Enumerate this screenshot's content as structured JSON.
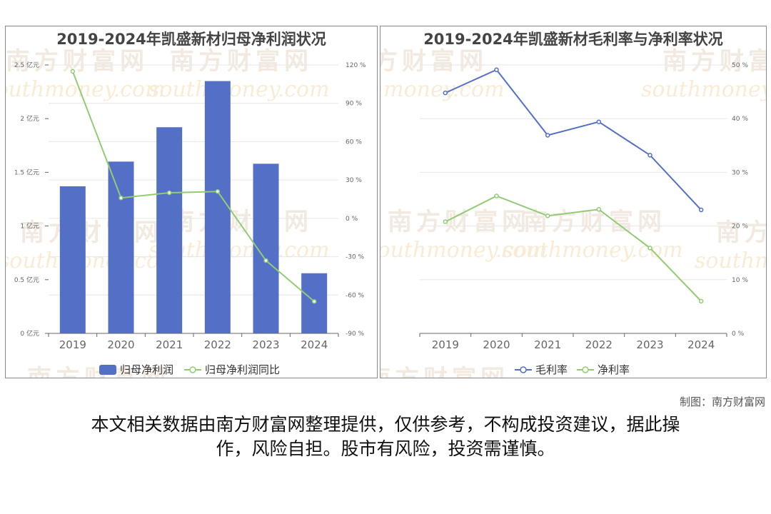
{
  "left_title": "2019-2024年凯盛新材归母净利润状况",
  "right_title": "2019-2024年凯盛新材毛利率与净利率状况",
  "credit": "制图：南方财富网",
  "disclaimer_line1": "本文相关数据由南方财富网整理提供，仅供参考，不构成投资建议，据此操",
  "disclaimer_line2": "作，风险自担。股市有风险，投资需谨慎。",
  "watermark": {
    "cn": "南方财富网",
    "en": "southmoney.com"
  },
  "colors": {
    "bar": "#5470c6",
    "green": "#91cc75",
    "blue": "#5470c6"
  },
  "chart_data": [
    {
      "type": "bar",
      "title": "2019-2024年凯盛新材归母净利润状况",
      "categories": [
        "2019",
        "2020",
        "2021",
        "2022",
        "2023",
        "2024"
      ],
      "series": [
        {
          "name": "归母净利润",
          "type": "bar",
          "axis": "left",
          "values": [
            1.37,
            1.6,
            1.92,
            2.35,
            1.58,
            0.56
          ]
        },
        {
          "name": "归母净利润同比",
          "type": "line",
          "axis": "right",
          "values": [
            115,
            16,
            20,
            21,
            -33,
            -65
          ]
        }
      ],
      "y_left": {
        "min": 0,
        "max": 2.5,
        "ticks": [
          0,
          0.5,
          1,
          1.5,
          2,
          2.5
        ],
        "labels": [
          "0 亿元",
          "0.5 亿元",
          "1 亿元",
          "1.5 亿元",
          "2 亿元",
          "2.5 亿元"
        ]
      },
      "y_right": {
        "min": -90,
        "max": 120,
        "ticks": [
          -90,
          -60,
          -30,
          0,
          30,
          60,
          90,
          120
        ],
        "labels": [
          "-90 %",
          "-60 %",
          "-30 %",
          "0 %",
          "30 %",
          "60 %",
          "90 %",
          "120 %"
        ]
      },
      "grid": true,
      "legend": "bottom"
    },
    {
      "type": "line",
      "title": "2019-2024年凯盛新材毛利率与净利率状况",
      "categories": [
        "2019",
        "2020",
        "2021",
        "2022",
        "2023",
        "2024"
      ],
      "series": [
        {
          "name": "毛利率",
          "values": [
            44.8,
            49.1,
            36.9,
            39.4,
            33.2,
            23
          ]
        },
        {
          "name": "净利率",
          "values": [
            20.8,
            25.6,
            21.9,
            23.1,
            15.9,
            6
          ]
        }
      ],
      "y_right": {
        "min": 0,
        "max": 50,
        "ticks": [
          0,
          10,
          20,
          30,
          40,
          50
        ],
        "labels": [
          "0 %",
          "10 %",
          "20 %",
          "30 %",
          "40 %",
          "50 %"
        ]
      },
      "grid": true,
      "legend": "bottom"
    }
  ]
}
